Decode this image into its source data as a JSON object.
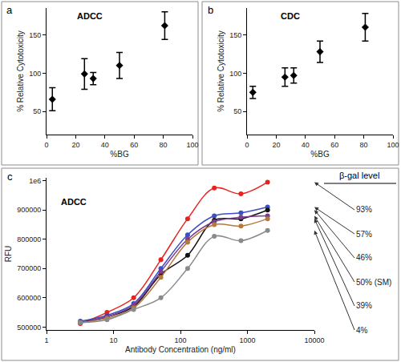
{
  "chart_data": [
    {
      "type": "scatter",
      "panel_label": "a",
      "title": "ADCC",
      "xlabel": "%BG",
      "ylabel": "% Relative Cytotoxicity",
      "x": [
        4,
        26,
        32,
        50,
        81
      ],
      "values": [
        66,
        99,
        93,
        110,
        162
      ],
      "error": [
        15,
        20,
        8,
        17,
        18
      ],
      "color": "#000000",
      "marker": "diamond",
      "xlim": [
        0,
        100
      ],
      "xticks": [
        0,
        20,
        40,
        60,
        80,
        100
      ],
      "ylim": [
        20,
        185
      ],
      "yticks": [
        50,
        100,
        150
      ],
      "grid": false
    },
    {
      "type": "scatter",
      "panel_label": "b",
      "title": "CDC",
      "xlabel": "%BG",
      "ylabel": "% Relative Cytotoxicity",
      "x": [
        4,
        26,
        32,
        50,
        81
      ],
      "values": [
        75,
        95,
        97,
        128,
        160
      ],
      "error": [
        8,
        12,
        10,
        14,
        18
      ],
      "color": "#000000",
      "marker": "diamond",
      "xlim": [
        0,
        100
      ],
      "xticks": [
        0,
        20,
        40,
        60,
        80,
        100
      ],
      "ylim": [
        20,
        185
      ],
      "yticks": [
        50,
        100,
        150
      ],
      "grid": false
    },
    {
      "type": "line",
      "panel_label": "c",
      "title": "ADCC",
      "xlabel": "Antibody Concentration (ng/ml)",
      "ylabel": "RFU",
      "legend_title": "β-gal level",
      "log": "x",
      "line_style": "spline",
      "marker": "circle",
      "x": [
        3.2,
        8,
        20,
        51,
        128,
        320,
        800,
        2000
      ],
      "series": [
        {
          "name": "93%",
          "color": "#e8231f",
          "values": [
            512000,
            550000,
            600000,
            730000,
            870000,
            975000,
            955000,
            995000
          ]
        },
        {
          "name": "57%",
          "color": "#3b4fc6",
          "values": [
            520000,
            540000,
            580000,
            700000,
            815000,
            880000,
            890000,
            910000
          ]
        },
        {
          "name": "46%",
          "color": "#111111",
          "values": [
            515000,
            535000,
            570000,
            680000,
            745000,
            865000,
            870000,
            900000
          ]
        },
        {
          "name": "50% (SM)",
          "color": "#7b3d8e",
          "values": [
            515000,
            535000,
            575000,
            690000,
            800000,
            860000,
            875000,
            880000
          ]
        },
        {
          "name": "39%",
          "color": "#b5793f",
          "values": [
            515000,
            530000,
            565000,
            670000,
            790000,
            850000,
            845000,
            870000
          ]
        },
        {
          "name": "4%",
          "color": "#8a8a8a",
          "values": [
            515000,
            525000,
            560000,
            600000,
            700000,
            810000,
            795000,
            830000
          ]
        }
      ],
      "xlim": [
        1,
        10000
      ],
      "xticks": [
        1,
        10,
        100,
        1000,
        10000
      ],
      "ylim": [
        490000,
        1010000
      ],
      "yticks": [
        500000,
        600000,
        700000,
        800000,
        900000,
        {
          "value": 1000000,
          "label": "1e6"
        }
      ],
      "grid": false
    }
  ]
}
